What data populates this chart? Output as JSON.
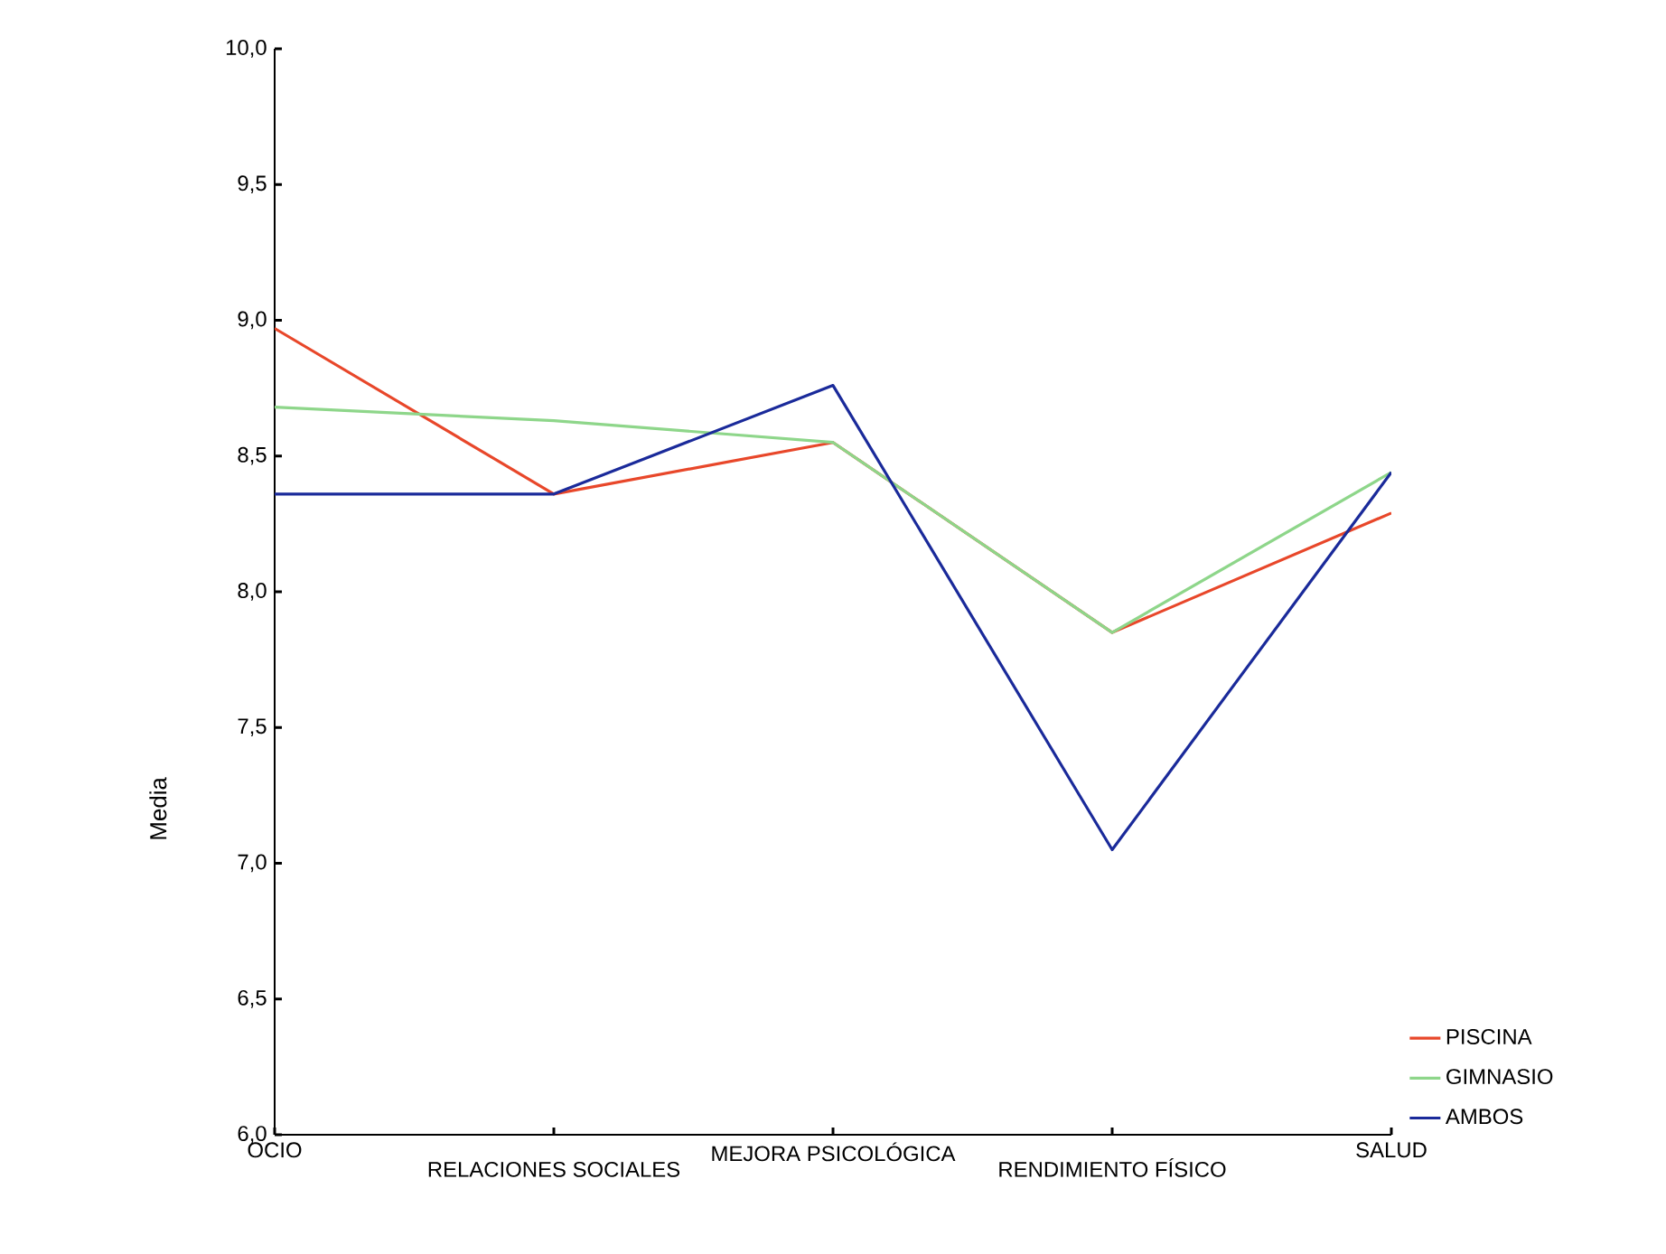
{
  "chart_data": {
    "type": "line",
    "ylabel": "Media",
    "categories": [
      "OCIO",
      "RELACIONES SOCIALES",
      "MEJORA PSICOLÓGICA",
      "RENDIMIENTO FÍSICO",
      "SALUD"
    ],
    "series": [
      {
        "name": "PISCINA",
        "color": "#e8472a",
        "values": [
          8.97,
          8.36,
          8.55,
          7.85,
          8.29
        ]
      },
      {
        "name": "GIMNASIO",
        "color": "#8ed68a",
        "values": [
          8.68,
          8.63,
          8.55,
          7.85,
          8.44
        ]
      },
      {
        "name": "AMBOS",
        "color": "#1a2a9a",
        "values": [
          8.36,
          8.36,
          8.76,
          7.05,
          8.44
        ]
      }
    ],
    "ylim": [
      6.0,
      10.0
    ],
    "yticks": [
      {
        "value": 6.0,
        "label": "6,0"
      },
      {
        "value": 6.5,
        "label": "6,5"
      },
      {
        "value": 7.0,
        "label": "7,0"
      },
      {
        "value": 7.5,
        "label": "7,5"
      },
      {
        "value": 8.0,
        "label": "8,0"
      },
      {
        "value": 8.5,
        "label": "8,5"
      },
      {
        "value": 9.0,
        "label": "9,0"
      },
      {
        "value": 9.5,
        "label": "9,5"
      },
      {
        "value": 10.0,
        "label": "10,0"
      }
    ],
    "grid": false,
    "legend": "right",
    "marker": "none",
    "line_style": "solid"
  }
}
